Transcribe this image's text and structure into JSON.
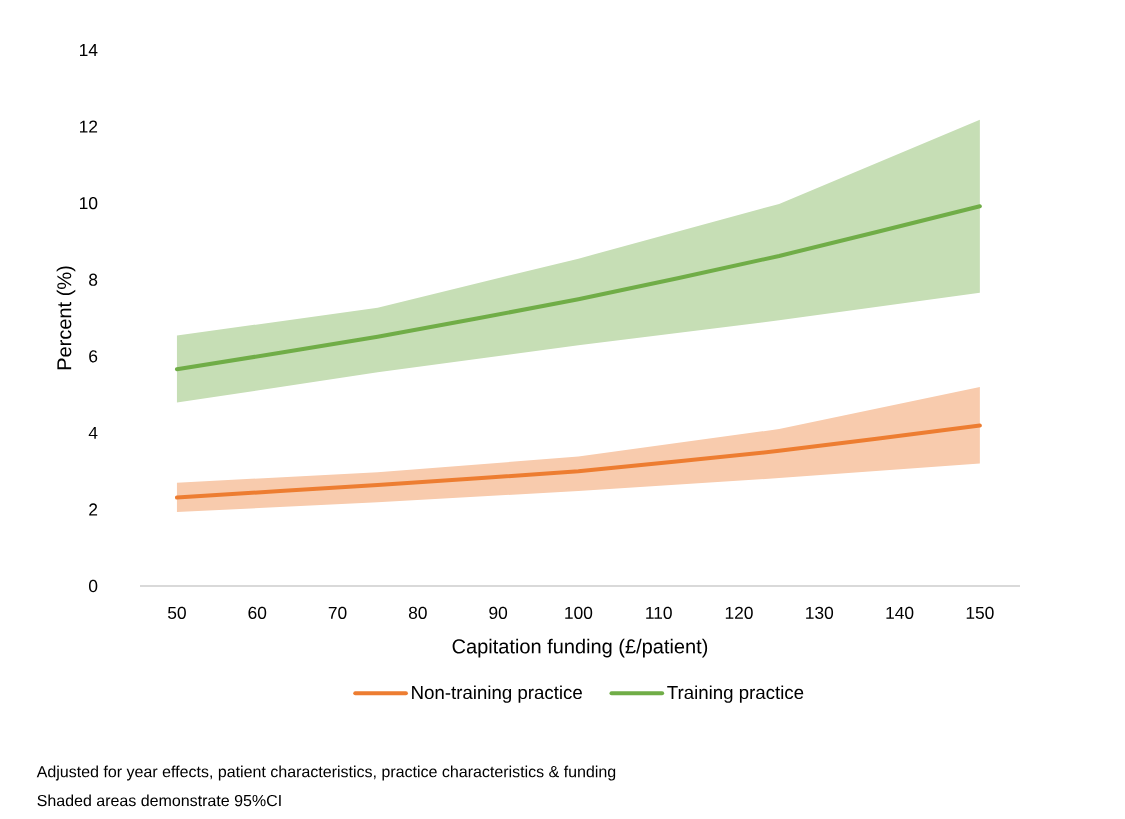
{
  "chart_data": {
    "type": "line",
    "xlabel": "Capitation funding (£/patient)",
    "ylabel": "Percent (%)",
    "x": [
      50,
      75,
      100,
      125,
      150
    ],
    "series": [
      {
        "name": "Non-training practice",
        "color": "#ed7d31",
        "values": [
          2.31,
          2.64,
          3.0,
          3.53,
          4.19
        ],
        "lower": [
          1.93,
          2.19,
          2.48,
          2.82,
          3.2
        ],
        "upper": [
          2.7,
          2.97,
          3.38,
          4.1,
          5.2
        ]
      },
      {
        "name": "Training practice",
        "color": "#70ad47",
        "values": [
          5.66,
          6.51,
          7.49,
          8.62,
          9.92
        ],
        "lower": [
          4.79,
          5.58,
          6.29,
          6.94,
          7.66
        ],
        "upper": [
          6.54,
          7.27,
          8.55,
          9.98,
          12.18
        ]
      }
    ],
    "xlim": [
      45.4,
      155
    ],
    "xticks": [
      50,
      60,
      70,
      80,
      90,
      100,
      110,
      120,
      130,
      140,
      150
    ],
    "ylim": [
      0,
      14
    ],
    "yticks": [
      0,
      2,
      4,
      6,
      8,
      10,
      12,
      14
    ],
    "legend": "bottom",
    "grid": false,
    "marker": "none",
    "line_style": "solid",
    "annotations": [
      "Adjusted for year effects, patient characteristics, practice characteristics & funding",
      "Shaded areas demonstrate 95%CI"
    ]
  }
}
